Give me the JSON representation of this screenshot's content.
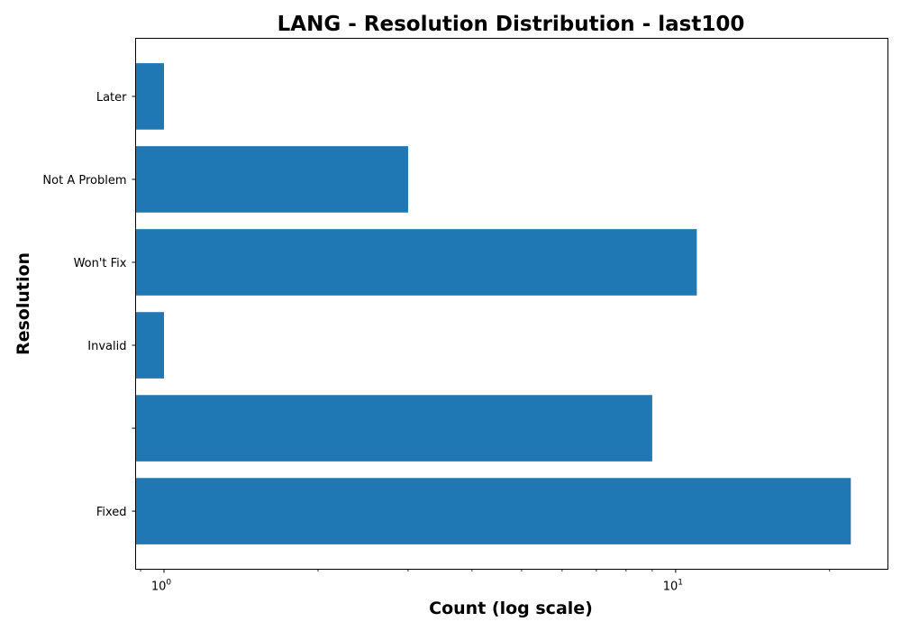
{
  "chart_data": {
    "type": "bar",
    "orientation": "horizontal",
    "title": "LANG - Resolution Distribution - last100",
    "xlabel": "Count (log scale)",
    "ylabel": "Resolution",
    "x_scale": "log",
    "xlim": [
      0.88,
      26
    ],
    "x_ticks": [
      {
        "value": 1,
        "base": "10",
        "exponent": "0"
      },
      {
        "value": 10,
        "base": "10",
        "exponent": "1"
      }
    ],
    "categories": [
      "Fixed",
      "",
      "Invalid",
      "Won't Fix",
      "Not A Problem",
      "Later"
    ],
    "values": [
      22,
      9,
      1,
      11,
      3,
      1
    ],
    "bar_color": "#1f77b4",
    "grid": false,
    "legend": "none"
  }
}
